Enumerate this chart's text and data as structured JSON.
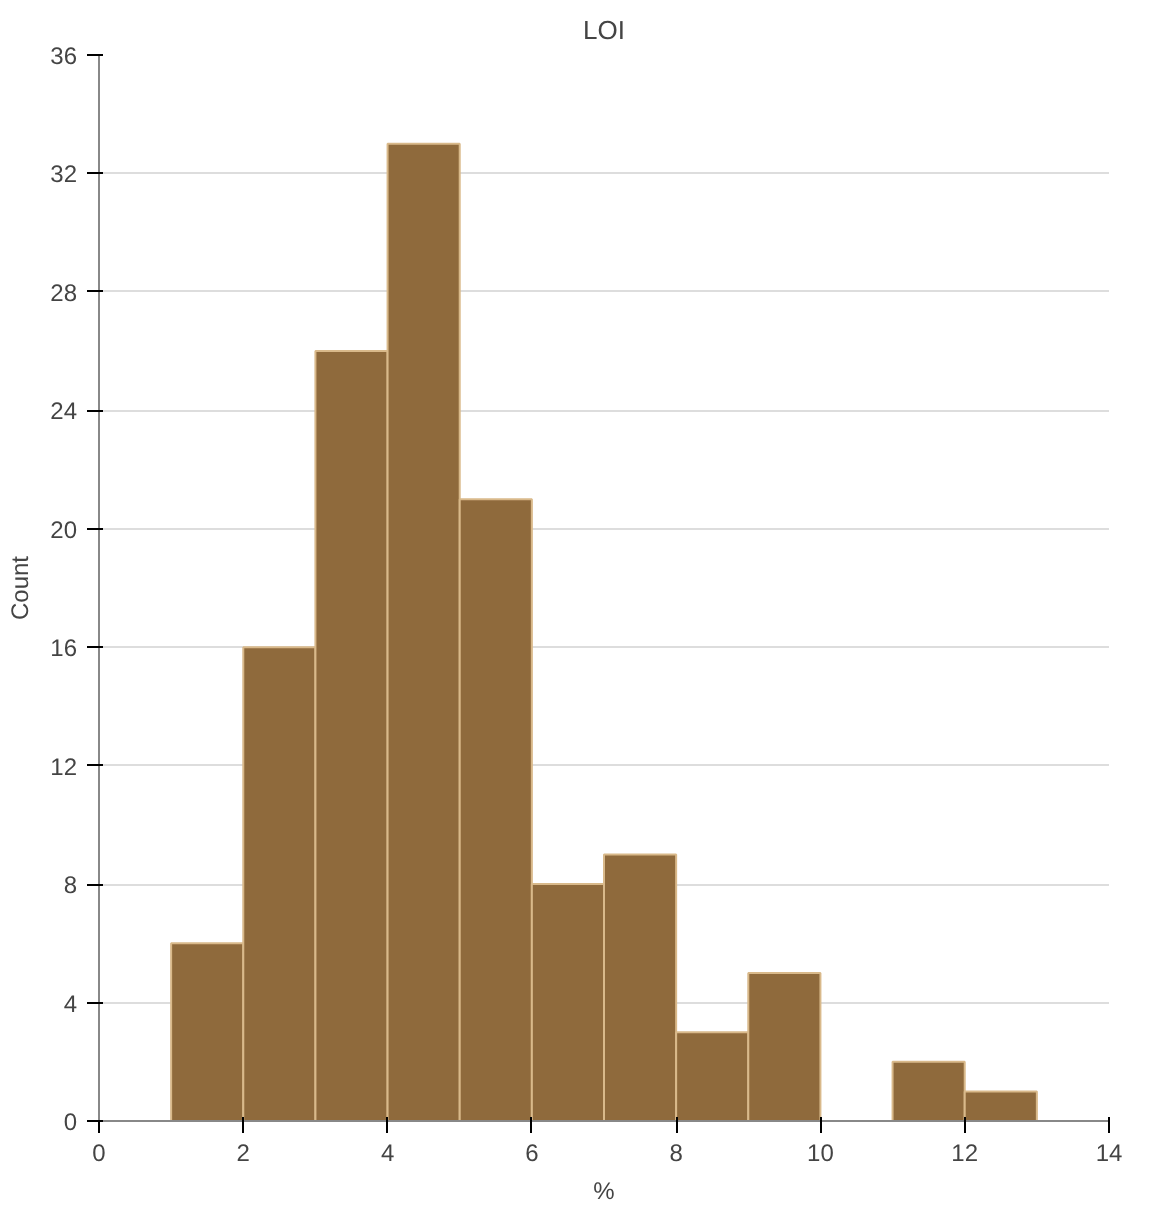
{
  "chart_data": {
    "type": "histogram",
    "title": "LOI",
    "xlabel": "%",
    "ylabel": "Count",
    "bins": [
      1,
      2,
      3,
      4,
      5,
      6,
      7,
      8,
      9,
      10,
      11,
      12,
      13
    ],
    "values": [
      6,
      16,
      26,
      33,
      21,
      8,
      9,
      3,
      5,
      0,
      2,
      1
    ],
    "color": "#8f6a3c",
    "xlim": [
      0,
      14
    ],
    "xticks": [
      0,
      2,
      4,
      6,
      8,
      10,
      12,
      14
    ],
    "ylim": [
      0,
      36
    ],
    "yticks": [
      0,
      4,
      8,
      12,
      16,
      20,
      24,
      28,
      32,
      36
    ],
    "grid": "y"
  }
}
